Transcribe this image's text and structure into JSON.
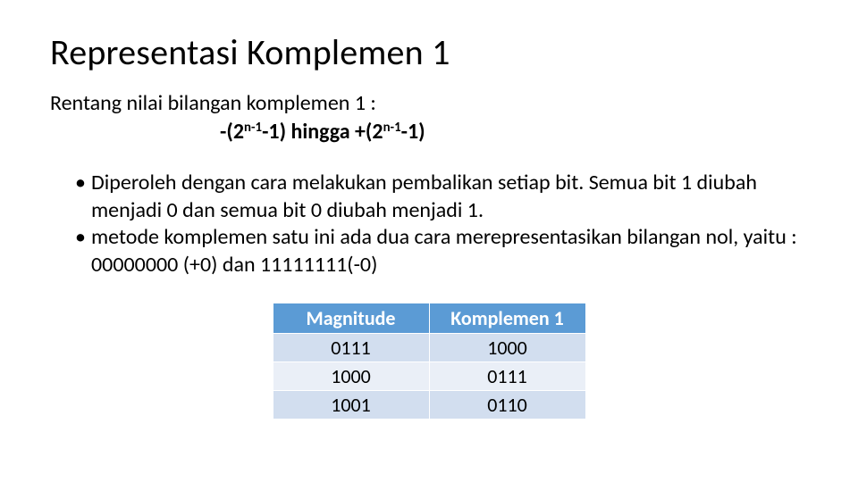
{
  "title": "Representasi Komplemen 1",
  "subtitle": "Rentang nilai bilangan komplemen 1 :",
  "formula": {
    "prefix": "-(2",
    "exp1": "n-1",
    "mid": "-1) hingga +(2",
    "exp2": "n-1",
    "suffix": "-1)"
  },
  "bullets": [
    "Diperoleh dengan cara melakukan pembalikan setiap bit. Semua bit 1 diubah menjadi 0 dan semua bit 0 diubah menjadi 1.",
    "metode komplemen satu ini ada dua cara merepresentasikan bilangan nol, yaitu : 00000000 (+0) dan 11111111(-0)"
  ],
  "table": {
    "headers": [
      "Magnitude",
      "Komplemen 1"
    ],
    "rows": [
      [
        "0111",
        "1000"
      ],
      [
        "1000",
        "0111"
      ],
      [
        "1001",
        "0110"
      ]
    ],
    "header_bg": "#5b9bd5",
    "header_fg": "#ffffff",
    "row_bg": "#d2deef",
    "row_alt_bg": "#eaeff7",
    "border_color": "#ffffff"
  }
}
